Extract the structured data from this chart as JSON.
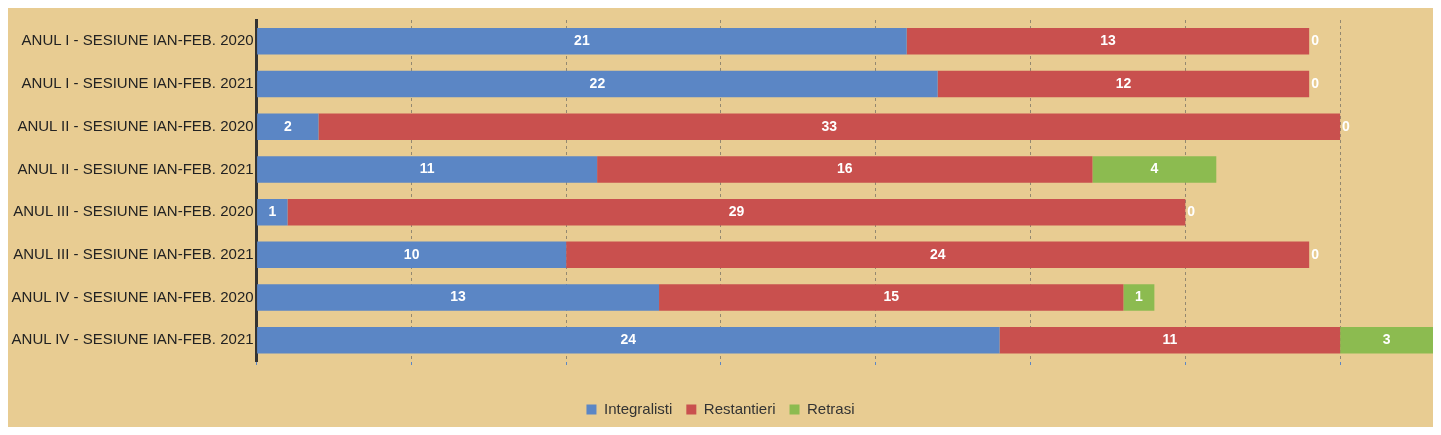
{
  "chart_data": {
    "type": "bar",
    "orientation": "horizontal",
    "stacked": true,
    "data_labels": true,
    "legend": "bottom",
    "grid": "x",
    "tick_labels": "y",
    "categories": [
      "ANUL I - SESIUNE IAN-FEB. 2020",
      "ANUL I - SESIUNE IAN-FEB. 2021",
      "ANUL II - SESIUNE IAN-FEB. 2020",
      "ANUL II - SESIUNE IAN-FEB. 2021",
      "ANUL III - SESIUNE IAN-FEB. 2020",
      "ANUL III - SESIUNE IAN-FEB. 2021",
      "ANUL IV - SESIUNE IAN-FEB. 2020",
      "ANUL IV - SESIUNE IAN-FEB. 2021"
    ],
    "xlim": [
      0,
      38
    ],
    "xticks": [
      {
        "value": 0,
        "label": null
      },
      {
        "value": 5,
        "label": null
      },
      {
        "value": 10,
        "label": null
      },
      {
        "value": 15,
        "label": null
      },
      {
        "value": 20,
        "label": null
      },
      {
        "value": 25,
        "label": null
      },
      {
        "value": 30,
        "label": null
      },
      {
        "value": 35,
        "label": null
      }
    ],
    "series": [
      {
        "name": "Integralisti",
        "color": "#5b86c5",
        "values": [
          21,
          22,
          2,
          11,
          1,
          10,
          13,
          24
        ]
      },
      {
        "name": "Restantieri",
        "color": "#c9504e",
        "values": [
          13,
          12,
          33,
          16,
          29,
          24,
          15,
          11
        ]
      },
      {
        "name": "Retrasi",
        "color": "#8cbb50",
        "values": [
          0,
          0,
          0,
          4,
          0,
          0,
          1,
          3
        ]
      }
    ]
  }
}
